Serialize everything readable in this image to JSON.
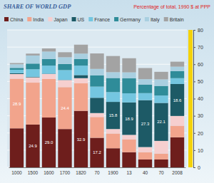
{
  "chart_data": {
    "type": "bar",
    "title": "SHARE OF WORLD GDP",
    "subtitle": "Percentage of total, 1990 $ at PPP",
    "categories": [
      "1000",
      "1500",
      "1600",
      "1700",
      "1820",
      "70",
      "1900",
      "13",
      "40",
      "70",
      "2008"
    ],
    "series": [
      {
        "name": "China",
        "color": "#6e1e1c",
        "values": [
          22.7,
          24.9,
          29.0,
          22.3,
          32.9,
          17.2,
          11.1,
          8.8,
          4.6,
          4.6,
          17.5
        ],
        "value_labels": [
          null,
          "24.9",
          "29.0",
          null,
          "32.9",
          "17.2",
          null,
          null,
          null,
          null,
          null
        ]
      },
      {
        "name": "India",
        "color": "#f2a48c",
        "values": [
          28.9,
          24.4,
          22.4,
          24.4,
          16.0,
          12.1,
          8.6,
          7.5,
          4.2,
          3.4,
          6.7
        ],
        "value_labels": [
          "28.9",
          null,
          null,
          "24.4",
          null,
          null,
          null,
          null,
          null,
          null,
          null
        ]
      },
      {
        "name": "Japan",
        "color": "#f6cfcf",
        "values": [
          2.7,
          3.1,
          2.9,
          4.1,
          3.0,
          2.3,
          2.6,
          2.6,
          3.0,
          7.4,
          5.7
        ],
        "value_labels": [
          null,
          null,
          null,
          null,
          null,
          null,
          null,
          null,
          null,
          null,
          null
        ]
      },
      {
        "name": "US",
        "color": "#1d5a66",
        "values": [
          0.5,
          0.3,
          0.2,
          0.1,
          1.8,
          8.9,
          15.8,
          18.9,
          27.3,
          22.1,
          18.6
        ],
        "value_labels": [
          null,
          null,
          null,
          null,
          null,
          null,
          "15.8",
          "18.9",
          "27.3",
          "22.1",
          "18.6"
        ]
      },
      {
        "name": "France",
        "color": "#74c6e0",
        "values": [
          2.0,
          4.4,
          4.7,
          5.7,
          5.5,
          6.5,
          5.7,
          5.3,
          4.1,
          4.3,
          3.4
        ],
        "value_labels": [
          null,
          null,
          null,
          null,
          null,
          null,
          null,
          null,
          null,
          null,
          null
        ]
      },
      {
        "name": "Germany",
        "color": "#2f8c99",
        "values": [
          1.1,
          3.3,
          3.8,
          3.6,
          3.8,
          6.5,
          8.2,
          8.7,
          5.0,
          5.6,
          4.1
        ],
        "value_labels": [
          null,
          null,
          null,
          null,
          null,
          null,
          null,
          null,
          null,
          null,
          null
        ]
      },
      {
        "name": "Italy",
        "color": "#a9cfe0",
        "values": [
          2.1,
          4.7,
          4.4,
          3.9,
          3.2,
          3.8,
          3.4,
          3.5,
          3.1,
          3.8,
          2.6
        ],
        "value_labels": [
          null,
          null,
          null,
          null,
          null,
          null,
          null,
          null,
          null,
          null,
          null
        ]
      },
      {
        "name": "Britain",
        "color": "#a3a3a3",
        "values": [
          0.7,
          1.1,
          1.8,
          2.9,
          5.2,
          9.0,
          9.4,
          8.2,
          6.5,
          4.4,
          2.9
        ],
        "value_labels": [
          null,
          null,
          null,
          null,
          null,
          null,
          null,
          null,
          null,
          null,
          null
        ]
      }
    ],
    "ylim": [
      0,
      80
    ],
    "yticks": [
      0,
      10,
      20,
      30,
      40,
      50,
      60,
      70,
      80
    ],
    "stacked": true,
    "grid": true,
    "legend": "top",
    "data_labels": true
  }
}
